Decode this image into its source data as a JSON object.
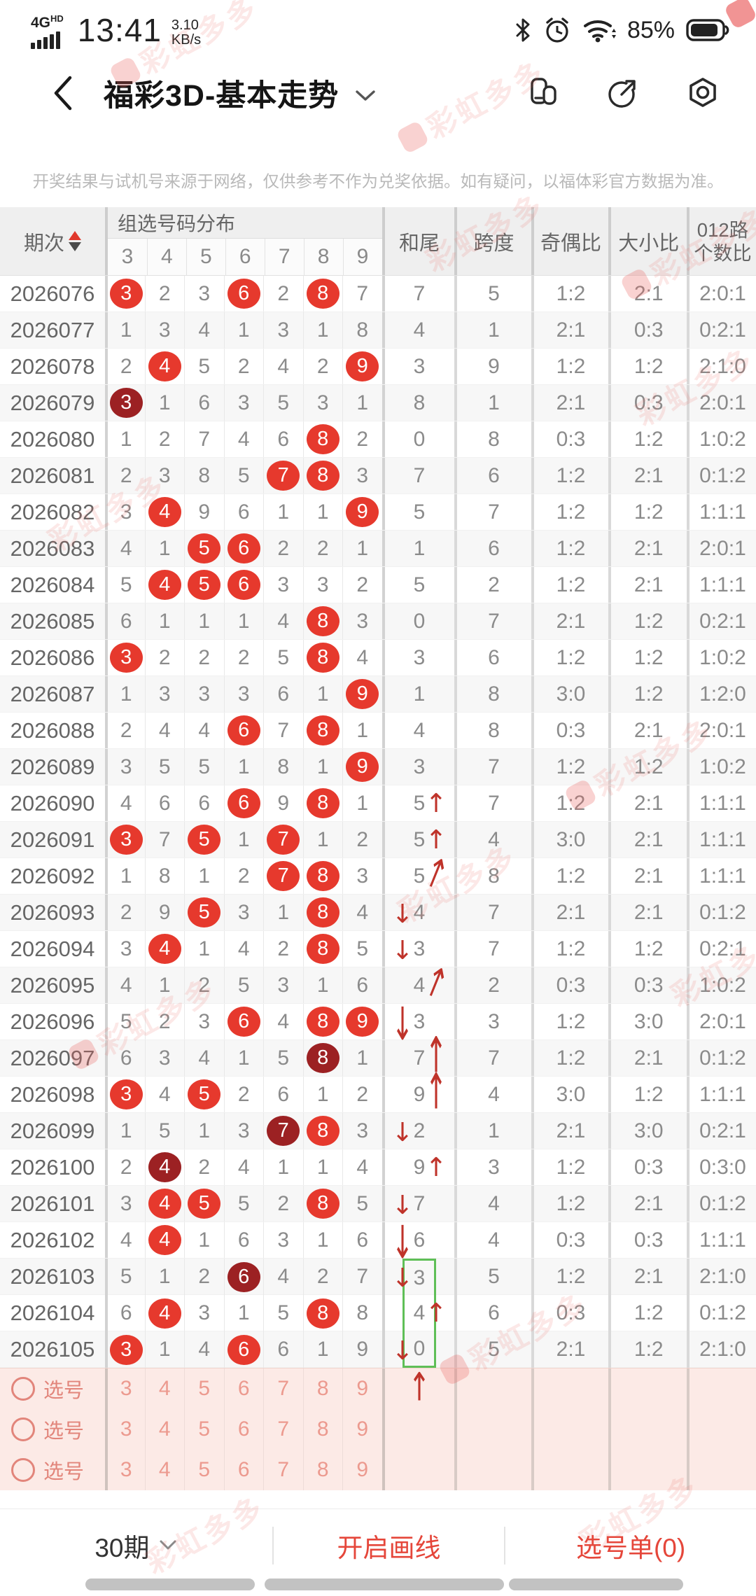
{
  "status_bar": {
    "network": "4G",
    "network_sub": "HD",
    "time": "13:41",
    "speed": "3.10",
    "speed_unit": "KB/s",
    "battery_pct": "85%"
  },
  "header": {
    "title": "福彩3D-基本走势"
  },
  "disclaimer": "开奖结果与试机号来源于网络，仅供参考不作为兑奖依据。如有疑问，以福体彩官方数据为准。",
  "watermark": {
    "text": "彩虹多多"
  },
  "colors": {
    "accent_red": "#e6392d",
    "dark_red": "#9c2123",
    "arrow_red": "#bf332a",
    "green_box": "#5fbf57",
    "pink_bg": "#fceae6",
    "pink_text": "#e2857b"
  },
  "table": {
    "headers": {
      "period": "期次",
      "group": "组选号码分布",
      "digits": [
        "3",
        "4",
        "5",
        "6",
        "7",
        "8",
        "9"
      ],
      "sum_tail": "和尾",
      "span": "跨度",
      "odd_even": "奇偶比",
      "big_small": "大小比",
      "route_line1": "012路",
      "route_line2": "个数比"
    },
    "rows": [
      {
        "p": "2026076",
        "d": [
          "3r",
          "2",
          "3",
          "6r",
          "2",
          "8r",
          "7"
        ],
        "h": "7",
        "a": "",
        "g": "",
        "k": "5",
        "j": "1:2",
        "x": "2:1",
        "l": "2:0:1"
      },
      {
        "p": "2026077",
        "d": [
          "1",
          "3",
          "4",
          "1",
          "3",
          "1",
          "8"
        ],
        "h": "4",
        "a": "",
        "g": "",
        "k": "1",
        "j": "2:1",
        "x": "0:3",
        "l": "0:2:1"
      },
      {
        "p": "2026078",
        "d": [
          "2",
          "4r",
          "5",
          "2",
          "4",
          "2",
          "9r"
        ],
        "h": "3",
        "a": "",
        "g": "",
        "k": "9",
        "j": "1:2",
        "x": "1:2",
        "l": "2:1:0"
      },
      {
        "p": "2026079",
        "d": [
          "3d",
          "1",
          "6",
          "3",
          "5",
          "3",
          "1"
        ],
        "h": "8",
        "a": "",
        "g": "",
        "k": "1",
        "j": "2:1",
        "x": "0:3",
        "l": "2:0:1"
      },
      {
        "p": "2026080",
        "d": [
          "1",
          "2",
          "7",
          "4",
          "6",
          "8r",
          "2"
        ],
        "h": "0",
        "a": "",
        "g": "",
        "k": "8",
        "j": "0:3",
        "x": "1:2",
        "l": "1:0:2"
      },
      {
        "p": "2026081",
        "d": [
          "2",
          "3",
          "8",
          "5",
          "7r",
          "8r",
          "3"
        ],
        "h": "7",
        "a": "",
        "g": "",
        "k": "6",
        "j": "1:2",
        "x": "2:1",
        "l": "0:1:2"
      },
      {
        "p": "2026082",
        "d": [
          "3",
          "4r",
          "9",
          "6",
          "1",
          "1",
          "9r"
        ],
        "h": "5",
        "a": "",
        "g": "",
        "k": "7",
        "j": "1:2",
        "x": "1:2",
        "l": "1:1:1"
      },
      {
        "p": "2026083",
        "d": [
          "4",
          "1",
          "5r",
          "6r",
          "2",
          "2",
          "1"
        ],
        "h": "1",
        "a": "",
        "g": "",
        "k": "6",
        "j": "1:2",
        "x": "2:1",
        "l": "2:0:1"
      },
      {
        "p": "2026084",
        "d": [
          "5",
          "4r",
          "5r",
          "6r",
          "3",
          "3",
          "2"
        ],
        "h": "5",
        "a": "",
        "g": "",
        "k": "2",
        "j": "1:2",
        "x": "2:1",
        "l": "1:1:1"
      },
      {
        "p": "2026085",
        "d": [
          "6",
          "1",
          "1",
          "1",
          "4",
          "8r",
          "3"
        ],
        "h": "0",
        "a": "",
        "g": "",
        "k": "7",
        "j": "2:1",
        "x": "1:2",
        "l": "0:2:1"
      },
      {
        "p": "2026086",
        "d": [
          "3r",
          "2",
          "2",
          "2",
          "5",
          "8r",
          "4"
        ],
        "h": "3",
        "a": "",
        "g": "",
        "k": "6",
        "j": "1:2",
        "x": "1:2",
        "l": "1:0:2"
      },
      {
        "p": "2026087",
        "d": [
          "1",
          "3",
          "3",
          "3",
          "6",
          "1",
          "9r"
        ],
        "h": "1",
        "a": "",
        "g": "",
        "k": "8",
        "j": "3:0",
        "x": "1:2",
        "l": "1:2:0"
      },
      {
        "p": "2026088",
        "d": [
          "2",
          "4",
          "4",
          "6r",
          "7",
          "8r",
          "1"
        ],
        "h": "4",
        "a": "",
        "g": "",
        "k": "8",
        "j": "0:3",
        "x": "2:1",
        "l": "2:0:1"
      },
      {
        "p": "2026089",
        "d": [
          "3",
          "5",
          "5",
          "1",
          "8",
          "1",
          "9r"
        ],
        "h": "3",
        "a": "",
        "g": "",
        "k": "7",
        "j": "1:2",
        "x": "1:2",
        "l": "1:0:2"
      },
      {
        "p": "2026090",
        "d": [
          "4",
          "6",
          "6",
          "6r",
          "9",
          "8r",
          "1"
        ],
        "h": "5",
        "a": "ur",
        "g": "",
        "k": "7",
        "j": "1:2",
        "x": "2:1",
        "l": "1:1:1"
      },
      {
        "p": "2026091",
        "d": [
          "3r",
          "7",
          "5r",
          "1",
          "7r",
          "1",
          "2"
        ],
        "h": "5",
        "a": "ur",
        "g": "",
        "k": "4",
        "j": "3:0",
        "x": "2:1",
        "l": "1:1:1"
      },
      {
        "p": "2026092",
        "d": [
          "1",
          "8",
          "1",
          "2",
          "7r",
          "8r",
          "3"
        ],
        "h": "5",
        "a": "urs",
        "g": "",
        "k": "8",
        "j": "1:2",
        "x": "2:1",
        "l": "1:1:1"
      },
      {
        "p": "2026093",
        "d": [
          "2",
          "9",
          "5r",
          "3",
          "1",
          "8r",
          "4"
        ],
        "h": "4",
        "a": "dl",
        "g": "",
        "k": "7",
        "j": "2:1",
        "x": "2:1",
        "l": "0:1:2"
      },
      {
        "p": "2026094",
        "d": [
          "3",
          "4r",
          "1",
          "4",
          "2",
          "8r",
          "5"
        ],
        "h": "3",
        "a": "dl",
        "g": "",
        "k": "7",
        "j": "1:2",
        "x": "1:2",
        "l": "0:2:1"
      },
      {
        "p": "2026095",
        "d": [
          "4",
          "1",
          "2",
          "5",
          "3",
          "1",
          "6"
        ],
        "h": "4",
        "a": "urs",
        "g": "",
        "k": "2",
        "j": "0:3",
        "x": "0:3",
        "l": "1:0:2"
      },
      {
        "p": "2026096",
        "d": [
          "5",
          "2",
          "3",
          "6r",
          "4",
          "8r",
          "9r"
        ],
        "h": "3",
        "a": "dll",
        "g": "",
        "k": "3",
        "j": "1:2",
        "x": "3:0",
        "l": "2:0:1"
      },
      {
        "p": "2026097",
        "d": [
          "6",
          "3",
          "4",
          "1",
          "5",
          "8d",
          "1"
        ],
        "h": "7",
        "a": "url",
        "g": "",
        "k": "7",
        "j": "1:2",
        "x": "2:1",
        "l": "0:1:2"
      },
      {
        "p": "2026098",
        "d": [
          "3r",
          "4",
          "5r",
          "2",
          "6",
          "1",
          "2"
        ],
        "h": "9",
        "a": "url",
        "g": "",
        "k": "4",
        "j": "3:0",
        "x": "1:2",
        "l": "1:1:1"
      },
      {
        "p": "2026099",
        "d": [
          "1",
          "5",
          "1",
          "3",
          "7d",
          "8r",
          "3"
        ],
        "h": "2",
        "a": "dl",
        "g": "",
        "k": "1",
        "j": "2:1",
        "x": "3:0",
        "l": "0:2:1"
      },
      {
        "p": "2026100",
        "d": [
          "2",
          "4d",
          "2",
          "4",
          "1",
          "1",
          "4"
        ],
        "h": "9",
        "a": "ur",
        "g": "",
        "k": "3",
        "j": "1:2",
        "x": "0:3",
        "l": "0:3:0"
      },
      {
        "p": "2026101",
        "d": [
          "3",
          "4r",
          "5r",
          "5",
          "2",
          "8r",
          "5"
        ],
        "h": "7",
        "a": "dl",
        "g": "",
        "k": "4",
        "j": "1:2",
        "x": "2:1",
        "l": "0:1:2"
      },
      {
        "p": "2026102",
        "d": [
          "4",
          "4r",
          "1",
          "6",
          "3",
          "1",
          "6"
        ],
        "h": "6",
        "a": "dll",
        "g": "",
        "k": "4",
        "j": "0:3",
        "x": "0:3",
        "l": "1:1:1"
      },
      {
        "p": "2026103",
        "d": [
          "5",
          "1",
          "2",
          "6d",
          "4",
          "2",
          "7"
        ],
        "h": "3",
        "a": "dl",
        "g": "top",
        "k": "5",
        "j": "1:2",
        "x": "2:1",
        "l": "2:1:0"
      },
      {
        "p": "2026104",
        "d": [
          "6",
          "4r",
          "3",
          "1",
          "5",
          "8r",
          "8"
        ],
        "h": "4",
        "a": "ur",
        "g": "mid",
        "k": "6",
        "j": "0:3",
        "x": "1:2",
        "l": "0:1:2"
      },
      {
        "p": "2026105",
        "d": [
          "3r",
          "1",
          "4",
          "6r",
          "6",
          "1",
          "9"
        ],
        "h": "0",
        "a": "dl",
        "g": "bot",
        "k": "5",
        "j": "2:1",
        "x": "1:2",
        "l": "2:1:0"
      }
    ]
  },
  "selection": {
    "label": "选号",
    "digits": [
      "3",
      "4",
      "5",
      "6",
      "7",
      "8",
      "9"
    ],
    "rows": 3,
    "arrow_row": 0
  },
  "footer": {
    "periods_label": "30期",
    "draw_label": "开启画线",
    "picks_label": "选号单(0)"
  }
}
